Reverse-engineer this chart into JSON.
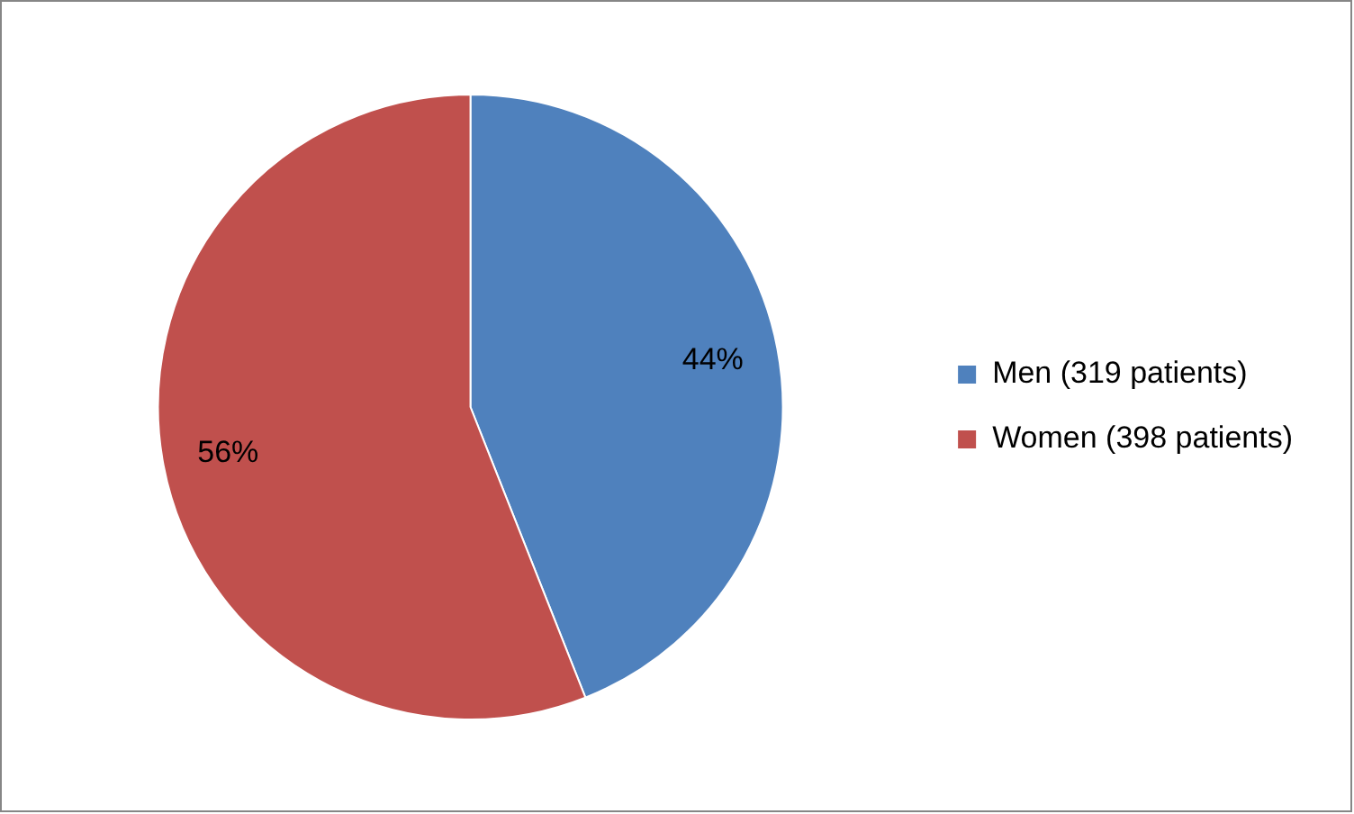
{
  "chart_data": {
    "type": "pie",
    "categories": [
      "Men (319 patients)",
      "Women (398 patients)"
    ],
    "values": [
      44,
      56
    ],
    "colors": [
      "#4f81bd",
      "#c0504d"
    ],
    "value_labels": [
      "44%",
      "56%"
    ],
    "legend": "right"
  }
}
